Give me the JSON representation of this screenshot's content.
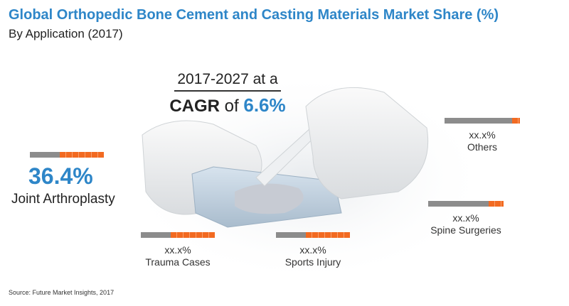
{
  "header": {
    "title": "Global Orthopedic Bone Cement and Casting Materials Market Share (%)",
    "subtitle": "By Application (2017)"
  },
  "cagr": {
    "line1": "2017-2027 at a",
    "label_bold": "CAGR",
    "label_of": " of ",
    "value": "6.6%"
  },
  "source": "Source: Future Market Insights, 2017",
  "colors": {
    "title": "#2e86c8",
    "accent_orange": "#f26a21",
    "track_gray": "#8c8c8c"
  },
  "chart_data": {
    "type": "bar",
    "title": "Global Orthopedic Bone Cement and Casting Materials Market Share (%)",
    "subtitle": "By Application (2017)",
    "categories": [
      "Joint Arthroplasty",
      "Trauma Cases",
      "Sports Injury",
      "Spine Surgeries",
      "Others"
    ],
    "value_labels": [
      "36.4%",
      "xx.x%",
      "xx.x%",
      "xx.x%",
      "xx.x%"
    ],
    "values": [
      36.4,
      null,
      null,
      null,
      null
    ],
    "indicator_fill_fraction": [
      0.6,
      0.6,
      0.6,
      0.2,
      0.1
    ]
  }
}
